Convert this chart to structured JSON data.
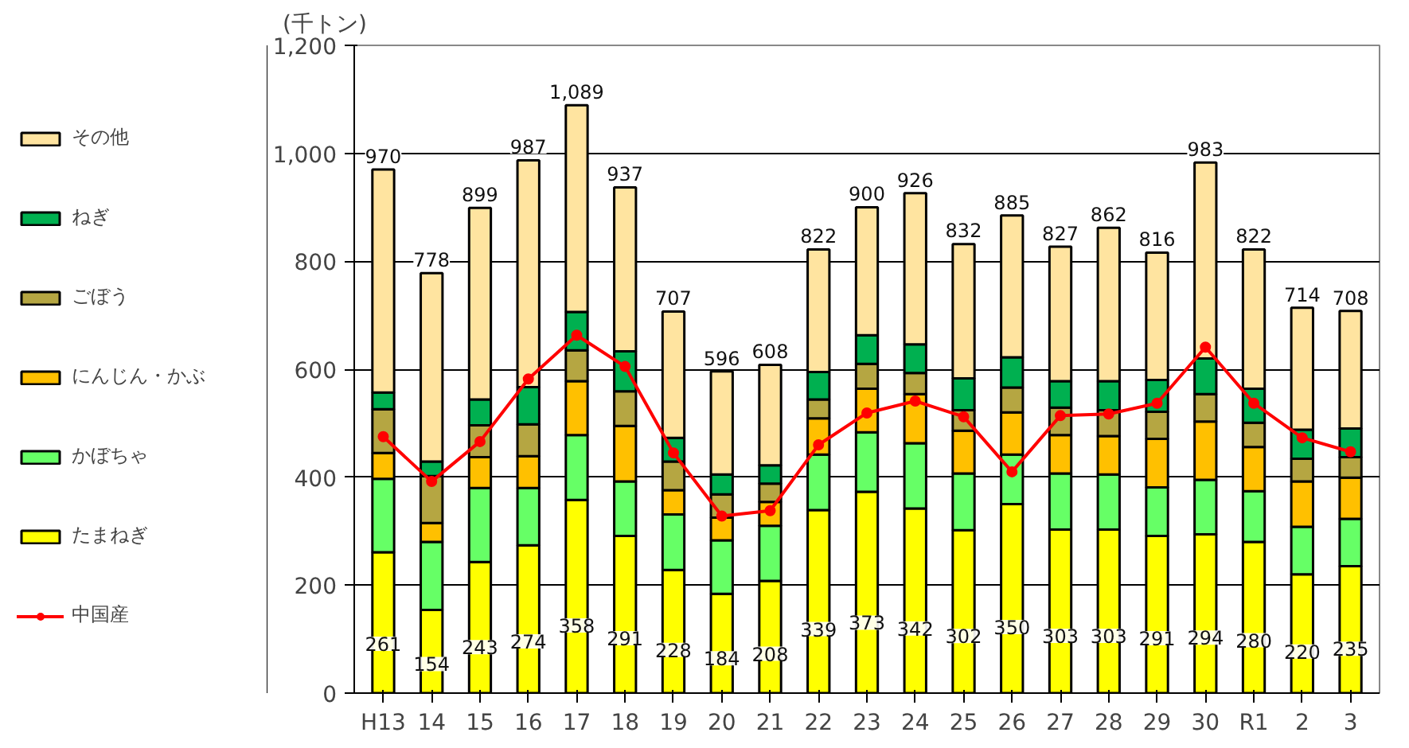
{
  "chart_data": {
    "type": "bar",
    "stacked": true,
    "ylabel": "(千トン)",
    "categories": [
      "H13",
      "14",
      "15",
      "16",
      "17",
      "18",
      "19",
      "20",
      "21",
      "22",
      "23",
      "24",
      "25",
      "26",
      "27",
      "28",
      "29",
      "30",
      "R1",
      "2",
      "3"
    ],
    "ylim": [
      0,
      1200
    ],
    "yticks": [
      0,
      200,
      400,
      600,
      800,
      {
        "value": 1000,
        "label": "1,000"
      },
      {
        "value": 1200,
        "label": "1,200"
      }
    ],
    "grid": "y",
    "legend": "left",
    "series": [
      {
        "name": "たまねぎ",
        "color": "#ffff00",
        "values": [
          261,
          154,
          243,
          274,
          358,
          291,
          228,
          184,
          208,
          339,
          373,
          342,
          302,
          350,
          303,
          303,
          291,
          294,
          280,
          220,
          235
        ],
        "value_labels": [
          "261",
          "154",
          "243",
          "274",
          "358",
          "291",
          "228",
          "184",
          "208",
          "339",
          "373",
          "342",
          "302",
          "350",
          "303",
          "303",
          "291",
          "294",
          "280",
          "220",
          "235"
        ]
      },
      {
        "name": "かぼちゃ",
        "color": "#66ff66",
        "values": [
          136,
          126,
          137,
          106,
          120,
          101,
          103,
          99,
          102,
          103,
          110,
          121,
          105,
          92,
          104,
          102,
          90,
          101,
          94,
          88,
          88
        ]
      },
      {
        "name": "にんじん・かぶ",
        "color": "#ffc000",
        "values": [
          48,
          35,
          57,
          59,
          100,
          103,
          45,
          42,
          44,
          67,
          81,
          91,
          79,
          78,
          71,
          71,
          90,
          108,
          82,
          84,
          76
        ]
      },
      {
        "name": "ごぼう",
        "color": "#b5a642",
        "values": [
          81,
          87,
          59,
          59,
          57,
          64,
          53,
          43,
          34,
          35,
          46,
          39,
          38,
          46,
          51,
          48,
          50,
          51,
          45,
          42,
          38
        ]
      },
      {
        "name": "ねぎ",
        "color": "#00b050",
        "values": [
          31,
          27,
          48,
          69,
          71,
          74,
          44,
          37,
          34,
          51,
          53,
          53,
          59,
          56,
          49,
          54,
          59,
          66,
          63,
          54,
          53
        ]
      },
      {
        "name": "その他",
        "color": "#ffe4a0",
        "values": [
          413,
          349,
          355,
          420,
          383,
          304,
          234,
          191,
          186,
          227,
          237,
          280,
          249,
          263,
          249,
          284,
          236,
          363,
          258,
          226,
          218
        ]
      },
      {
        "name": "中国産",
        "type": "line",
        "color": "#ff0000",
        "marker": "circle",
        "values": [
          475,
          392,
          466,
          582,
          663,
          605,
          445,
          328,
          338,
          460,
          519,
          541,
          512,
          410,
          514,
          517,
          537,
          641,
          537,
          473,
          447
        ]
      }
    ],
    "totals": [
      "970",
      "778",
      "899",
      "987",
      "1,089",
      "937",
      "707",
      "596",
      "608",
      "822",
      "900",
      "926",
      "832",
      "885",
      "827",
      "862",
      "816",
      "983",
      "822",
      "714",
      "708"
    ]
  }
}
